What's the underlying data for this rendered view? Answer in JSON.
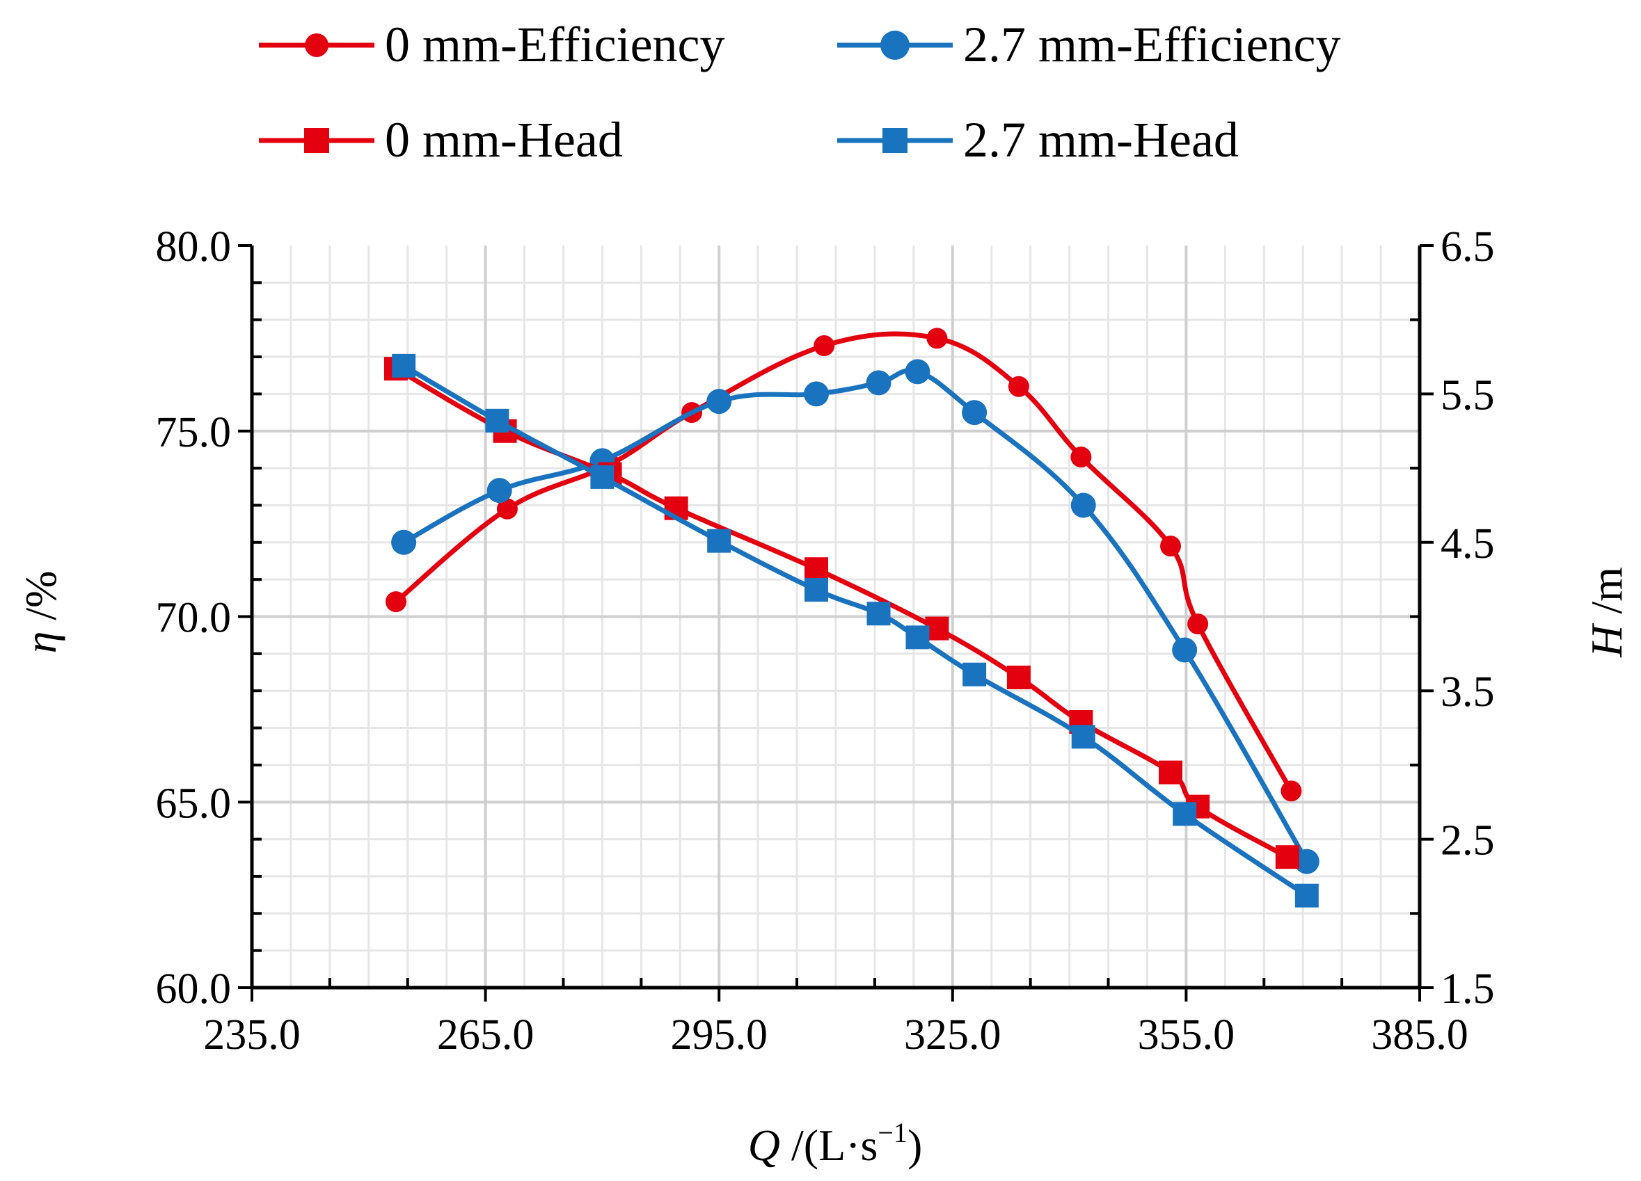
{
  "chart_data": {
    "type": "line",
    "x_label": {
      "symbol": "Q",
      "unit_prefix": " /(L·s",
      "unit_exp": "−1",
      "unit_suffix": ")"
    },
    "y_left_label": {
      "symbol": "η",
      "unit": " /%"
    },
    "y_right_label": {
      "symbol": "H",
      "unit": " /m"
    },
    "xlim": [
      235,
      385
    ],
    "ylim_left": [
      60,
      80
    ],
    "ylim_right": [
      1.5,
      6.5
    ],
    "x_ticks": [
      "235.0",
      "265.0",
      "295.0",
      "325.0",
      "355.0",
      "385.0"
    ],
    "x_tick_values": [
      235,
      265,
      295,
      325,
      355,
      385
    ],
    "y_left_ticks": [
      "60.0",
      "65.0",
      "70.0",
      "75.0",
      "80.0"
    ],
    "y_left_tick_values": [
      60,
      65,
      70,
      75,
      80
    ],
    "y_right_ticks": [
      "1.5",
      "2.5",
      "3.5",
      "4.5",
      "5.5",
      "6.5"
    ],
    "y_right_tick_values": [
      1.5,
      2.5,
      3.5,
      4.5,
      5.5,
      6.5
    ],
    "grid": true,
    "legend_position": "top",
    "colors": {
      "red": "#E3000F",
      "blue": "#1A73BE"
    },
    "series": [
      {
        "name": "0 mm-Efficiency",
        "axis": "left",
        "marker": "circle",
        "color": "#E3000F",
        "x": [
          253.5,
          267.8,
          281.0,
          291.5,
          308.5,
          323.0,
          333.5,
          341.5,
          353.0,
          356.5,
          368.5
        ],
        "y": [
          70.4,
          72.9,
          74.1,
          75.5,
          77.3,
          77.5,
          76.2,
          74.3,
          71.9,
          69.8,
          65.3
        ]
      },
      {
        "name": "2.7 mm-Efficiency",
        "axis": "left",
        "marker": "circle",
        "color": "#1A73BE",
        "x": [
          254.5,
          266.8,
          280.0,
          295.0,
          307.5,
          315.5,
          320.5,
          327.8,
          341.8,
          354.8,
          370.5
        ],
        "y": [
          72.0,
          73.4,
          74.2,
          75.8,
          76.0,
          76.3,
          76.6,
          75.5,
          73.0,
          69.1,
          63.4
        ]
      },
      {
        "name": "0 mm-Head",
        "axis": "right",
        "marker": "square",
        "color": "#E3000F",
        "x": [
          253.5,
          267.5,
          281.0,
          289.5,
          307.5,
          323.0,
          333.5,
          341.5,
          353.0,
          356.5,
          368.0
        ],
        "y": [
          5.67,
          5.25,
          4.96,
          4.73,
          4.32,
          3.92,
          3.59,
          3.29,
          2.95,
          2.72,
          2.38
        ]
      },
      {
        "name": "2.7 mm-Head",
        "axis": "right",
        "marker": "square",
        "color": "#1A73BE",
        "x": [
          254.5,
          266.5,
          280.0,
          295.0,
          307.5,
          315.5,
          320.5,
          327.8,
          341.8,
          354.8,
          370.5
        ],
        "y": [
          5.69,
          5.32,
          4.94,
          4.51,
          4.18,
          4.02,
          3.86,
          3.61,
          3.19,
          2.67,
          2.12
        ]
      }
    ]
  }
}
